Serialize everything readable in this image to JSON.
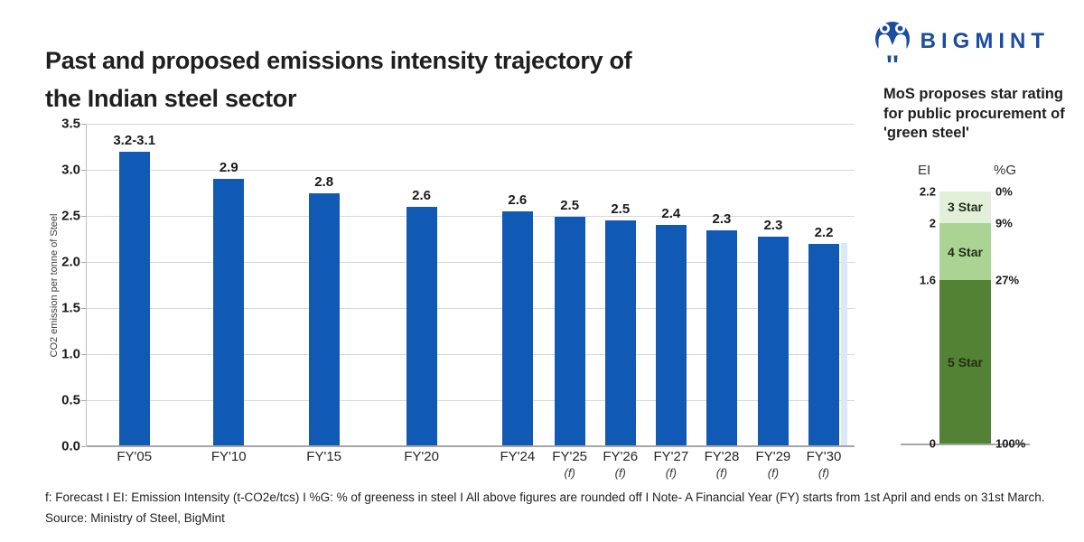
{
  "header": {
    "title_line1": "Past and proposed emissions intensity trajectory of",
    "title_line2": "the Indian steel sector",
    "brand": "BIGMINT"
  },
  "colors": {
    "bar_blue": "#1059b5",
    "brand_blue": "#1b4c9e",
    "grid_gray": "#d9d9d9",
    "axis_gray": "#a6a6a6",
    "faint_clipped_bar": "#dae8f7",
    "star_light_green": "#e2f0da",
    "star_mid_green": "#abd494",
    "star_dark_green": "#548235"
  },
  "chart_data": [
    {
      "type": "bar",
      "title": "Past and proposed emissions intensity trajectory of the Indian steel sector",
      "xlabel": "",
      "ylabel": "CO2 emission per tonne of Steel",
      "ylim": [
        0,
        3.5
      ],
      "grid": true,
      "yticks": [
        "3.5",
        "3.0",
        "2.5",
        "2.0",
        "1.5",
        "1.0",
        "0.5",
        "0.0"
      ],
      "categories": [
        "FY'05",
        "FY'10",
        "FY'15",
        "FY'20",
        "FY'24",
        "FY'25",
        "FY'26",
        "FY'27",
        "FY'28",
        "FY'29",
        "FY'30"
      ],
      "forecast_flags": [
        false,
        false,
        false,
        false,
        false,
        true,
        true,
        true,
        true,
        true,
        true
      ],
      "forecast_suffix": "(f)",
      "data_labels": [
        "3.2-3.1",
        "2.9",
        "2.8",
        "2.6",
        "2.6",
        "2.5",
        "2.5",
        "2.4",
        "2.3",
        "2.3",
        "2.2"
      ],
      "values": [
        3.2,
        2.9,
        2.75,
        2.6,
        2.55,
        2.49,
        2.45,
        2.4,
        2.34,
        2.27,
        2.2
      ],
      "centers_pct": [
        6.2,
        18.5,
        30.9,
        43.6,
        56.1,
        62.9,
        69.5,
        76.1,
        82.7,
        89.4,
        96.0
      ]
    },
    {
      "type": "stacked-bar",
      "title": "MoS proposes star rating for public procurement of 'green steel'",
      "col_left_header": "EI",
      "col_right_header": "%G",
      "segments": [
        {
          "label": "3 Star",
          "ei_top": "2.2",
          "g_top": "0%",
          "color": "#e2f0da",
          "height_pct": 12.5
        },
        {
          "label": "4 Star",
          "ei_top": "2",
          "g_top": "9%",
          "color": "#abd494",
          "height_pct": 22.7
        },
        {
          "label": "5 Star",
          "ei_top": "1.6",
          "g_top": "27%",
          "color": "#548235",
          "height_pct": 64.8
        }
      ],
      "ei_bottom": "0",
      "g_bottom": "100%"
    }
  ],
  "footer": {
    "notes": "f: Forecast  I  EI: Emission Intensity (t-CO2e/tcs)  I  %G: % of greeness in steel  I  All above figures are rounded off  I  Note- A Financial Year (FY) starts from 1st April and ends on 31st March.",
    "source": "Source: Ministry of Steel, BigMint"
  }
}
